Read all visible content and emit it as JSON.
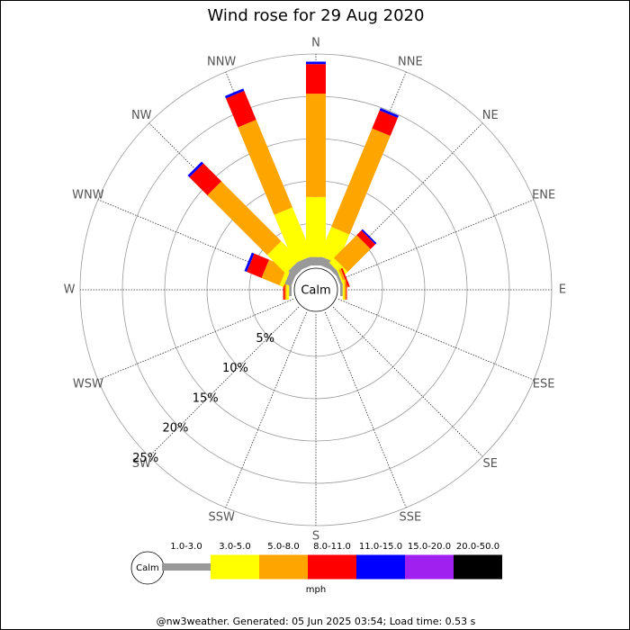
{
  "chart_data": {
    "type": "windrose",
    "title": "Wind rose for 29 Aug 2020",
    "directions": [
      "N",
      "NNE",
      "NE",
      "ENE",
      "E",
      "ESE",
      "SE",
      "SSE",
      "S",
      "SSW",
      "SW",
      "WSW",
      "W",
      "WNW",
      "NW",
      "NNW"
    ],
    "calm_label": "Calm",
    "legend_title": "mph",
    "footer": "@nw3weather. Generated: 05 Jun 2025 03:54; Load time: 0.53 s",
    "rlim": [
      0,
      25
    ],
    "rticks": [
      {
        "value": 5,
        "label": "5%"
      },
      {
        "value": 10,
        "label": "10%"
      },
      {
        "value": 15,
        "label": "15%"
      },
      {
        "value": 20,
        "label": "20%"
      },
      {
        "value": 25,
        "label": "25%"
      }
    ],
    "series": [
      {
        "name": "1.0-3.0",
        "color": "#999999",
        "values": [
          1.0,
          1.0,
          0.5,
          0.3,
          0.3,
          0,
          0,
          0,
          0,
          0,
          0,
          0,
          0.3,
          0.8,
          1.0,
          1.0
        ]
      },
      {
        "name": "3.0-5.0",
        "color": "#ffff00",
        "values": [
          7.1,
          3.7,
          0.8,
          0.2,
          0.2,
          0,
          0,
          0,
          0,
          0,
          0,
          0,
          0.3,
          0.5,
          3.1,
          6.2
        ]
      },
      {
        "name": "5.0-8.0",
        "color": "#ffa500",
        "values": [
          12.2,
          12.6,
          3.8,
          0.3,
          0.2,
          0,
          0,
          0,
          0,
          0,
          0,
          0,
          0.2,
          2.3,
          10.0,
          11.2
        ]
      },
      {
        "name": "8.0-11.0",
        "color": "#ff0000",
        "values": [
          3.5,
          2.3,
          0.8,
          0.2,
          0.1,
          0,
          0,
          0,
          0,
          0,
          0,
          0,
          0.2,
          1.9,
          3.0,
          3.7
        ]
      },
      {
        "name": "11.0-15.0",
        "color": "#0000ff",
        "values": [
          0.3,
          0.3,
          0.2,
          0,
          0,
          0,
          0,
          0,
          0,
          0,
          0,
          0,
          0,
          0.3,
          0.3,
          0.3
        ]
      },
      {
        "name": "15.0-20.0",
        "color": "#a020f0",
        "values": [
          0,
          0,
          0,
          0,
          0,
          0,
          0,
          0,
          0,
          0,
          0,
          0,
          0,
          0,
          0,
          0
        ]
      },
      {
        "name": "20.0-50.0",
        "color": "#000000",
        "values": [
          0,
          0,
          0,
          0,
          0,
          0,
          0,
          0,
          0,
          0,
          0,
          0,
          0,
          0,
          0,
          0
        ]
      }
    ]
  }
}
